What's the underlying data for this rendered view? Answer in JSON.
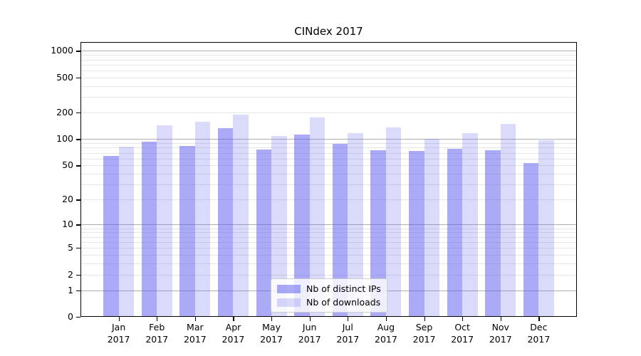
{
  "chart_data": {
    "type": "bar",
    "title": "CINdex 2017",
    "months": [
      "Jan",
      "Feb",
      "Mar",
      "Apr",
      "May",
      "Jun",
      "Jul",
      "Aug",
      "Sep",
      "Oct",
      "Nov",
      "Dec"
    ],
    "year_label": "2017",
    "series": [
      {
        "name": "Nb of distinct IPs",
        "fill": "#5555ee80",
        "values": [
          64,
          93,
          83,
          134,
          76,
          112,
          89,
          75,
          73,
          78,
          75,
          53
        ]
      },
      {
        "name": "Nb of downloads",
        "fill": "#5555ee38",
        "values": [
          82,
          145,
          159,
          190,
          109,
          175,
          118,
          137,
          101,
          118,
          150,
          97
        ]
      }
    ],
    "yscale": "log1p",
    "ylim": [
      0,
      1260
    ],
    "ytick_values": [
      0,
      1,
      2,
      5,
      10,
      20,
      50,
      100,
      200,
      500,
      1000
    ],
    "grid_major_color": "#b0b0b0",
    "grid_minor_color": "#e6e6e6",
    "axis_color": "#000000",
    "legend_position": "lower center",
    "grid": true
  }
}
